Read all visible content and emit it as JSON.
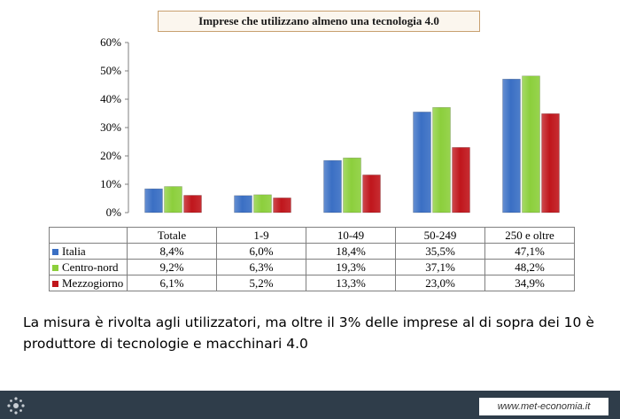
{
  "chart_data": {
    "type": "bar",
    "title": "Imprese che utilizzano almeno una tecnologia 4.0",
    "categories": [
      "Totale",
      "1-9",
      "10-49",
      "50-249",
      "250 e oltre"
    ],
    "series": [
      {
        "name": "Italia",
        "values": [
          8.4,
          6.0,
          18.4,
          35.5,
          47.1
        ],
        "labels": [
          "8,4%",
          "6,0%",
          "18,4%",
          "35,5%",
          "47,1%"
        ],
        "color": "#3a6fc4"
      },
      {
        "name": "Centro-nord",
        "values": [
          9.2,
          6.3,
          19.3,
          37.1,
          48.2
        ],
        "labels": [
          "9,2%",
          "6,3%",
          "19,3%",
          "37,1%",
          "48,2%"
        ],
        "color": "#8ccf3c"
      },
      {
        "name": "Mezzogiorno",
        "values": [
          6.1,
          5.2,
          13.3,
          23.0,
          34.9
        ],
        "labels": [
          "6,1%",
          "5,2%",
          "13,3%",
          "23,0%",
          "34,9%"
        ],
        "color": "#c0161c"
      }
    ],
    "y_ticks": [
      "0%",
      "10%",
      "20%",
      "30%",
      "40%",
      "50%",
      "60%"
    ],
    "ylim": [
      0,
      60
    ],
    "grid": false,
    "legend": "data-table"
  },
  "caption": "La misura è rivolta agli utilizzatori, ma oltre il 3% delle imprese al di sopra dei 10 è produttore di tecnologie e macchinari 4.0",
  "footer": {
    "url": "www.met-economia.it"
  }
}
